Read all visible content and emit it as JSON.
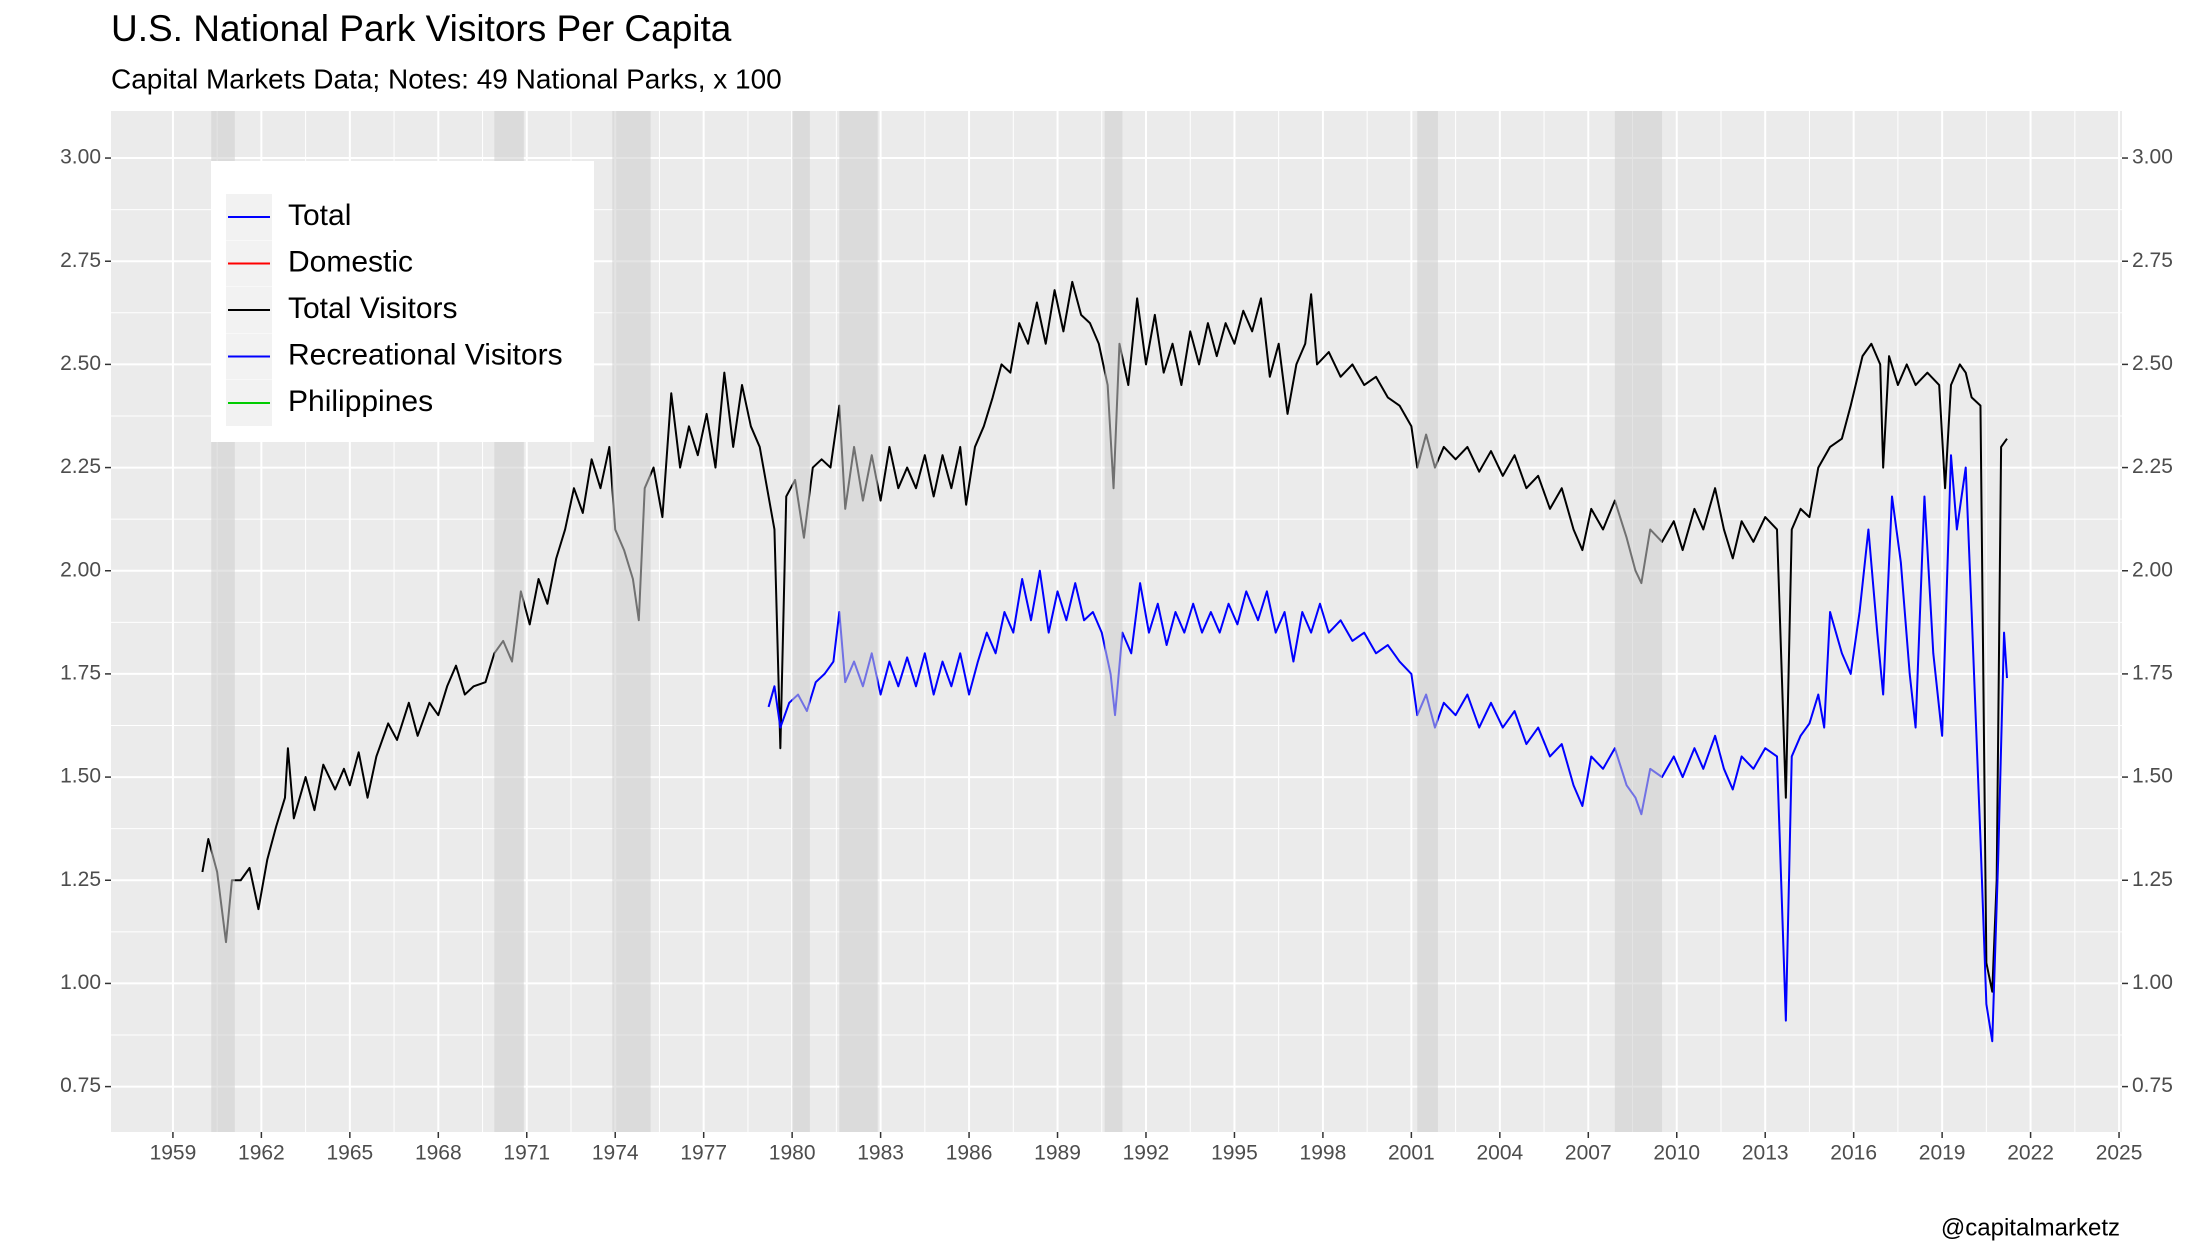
{
  "chart_data": {
    "type": "line",
    "title": "U.S. National Park Visitors Per Capita",
    "subtitle": "Capital Markets Data; Notes: 49 National Parks, x 100",
    "caption": "@capitalmarketz",
    "xlim": [
      1956.9,
      2025.1
    ],
    "xticks": [
      1959,
      1962,
      1965,
      1968,
      1971,
      1974,
      1977,
      1980,
      1983,
      1986,
      1989,
      1992,
      1995,
      1998,
      2001,
      2004,
      2007,
      2010,
      2013,
      2016,
      2019,
      2022,
      2025
    ],
    "ylim": [
      0.64,
      3.114
    ],
    "yticks": [
      {
        "value": 0.75,
        "label": "0.75"
      },
      {
        "value": 1,
        "label": "1.00"
      },
      {
        "value": 1.25,
        "label": "1.25"
      },
      {
        "value": 1.5,
        "label": "1.50"
      },
      {
        "value": 1.75,
        "label": "1.75"
      },
      {
        "value": 2,
        "label": "2.00"
      },
      {
        "value": 2.25,
        "label": "2.25"
      },
      {
        "value": 2.5,
        "label": "2.50"
      },
      {
        "value": 2.75,
        "label": "2.75"
      },
      {
        "value": 3,
        "label": "3.00"
      }
    ],
    "grid": true,
    "legend_position": "top-left",
    "shaded_periods": [
      [
        1960.3,
        1961.1
      ],
      [
        1969.9,
        1970.9
      ],
      [
        1973.9,
        1975.2
      ],
      [
        1980.0,
        1980.6
      ],
      [
        1981.6,
        1982.9
      ],
      [
        1990.6,
        1991.2
      ],
      [
        2001.2,
        2001.9
      ],
      [
        2007.9,
        2009.5
      ]
    ],
    "series": [
      {
        "name": "Total",
        "color": "#0000ff",
        "x": [],
        "values": []
      },
      {
        "name": "Domestic",
        "color": "#ff0000",
        "x": [],
        "values": []
      },
      {
        "name": "Total Visitors",
        "color": "#000000",
        "x": [
          1960.0,
          1960.2,
          1960.5,
          1960.8,
          1961.0,
          1961.3,
          1961.6,
          1961.9,
          1962.2,
          1962.5,
          1962.8,
          1962.9,
          1963.1,
          1963.5,
          1963.8,
          1964.1,
          1964.5,
          1964.8,
          1965.0,
          1965.3,
          1965.6,
          1965.9,
          1966.3,
          1966.6,
          1967.0,
          1967.3,
          1967.7,
          1968.0,
          1968.3,
          1968.6,
          1968.9,
          1969.2,
          1969.6,
          1969.9,
          1970.2,
          1970.5,
          1970.8,
          1971.1,
          1971.4,
          1971.7,
          1972.0,
          1972.3,
          1972.6,
          1972.9,
          1973.2,
          1973.5,
          1973.8,
          1974.0,
          1974.3,
          1974.6,
          1974.8,
          1975.0,
          1975.3,
          1975.6,
          1975.9,
          1976.2,
          1976.5,
          1976.8,
          1977.1,
          1977.4,
          1977.7,
          1978.0,
          1978.3,
          1978.6,
          1978.9,
          1979.2,
          1979.4,
          1979.6,
          1979.8,
          1980.1,
          1980.4,
          1980.7,
          1981.0,
          1981.3,
          1981.6,
          1981.8,
          1982.1,
          1982.4,
          1982.7,
          1983.0,
          1983.3,
          1983.6,
          1983.9,
          1984.2,
          1984.5,
          1984.8,
          1985.1,
          1985.4,
          1985.7,
          1985.9,
          1986.2,
          1986.5,
          1986.8,
          1987.1,
          1987.4,
          1987.7,
          1988.0,
          1988.3,
          1988.6,
          1988.9,
          1989.2,
          1989.5,
          1989.8,
          1990.1,
          1990.4,
          1990.7,
          1990.9,
          1991.1,
          1991.4,
          1991.7,
          1992.0,
          1992.3,
          1992.6,
          1992.9,
          1993.2,
          1993.5,
          1993.8,
          1994.1,
          1994.4,
          1994.7,
          1995.0,
          1995.3,
          1995.6,
          1995.9,
          1996.2,
          1996.5,
          1996.8,
          1997.1,
          1997.4,
          1997.6,
          1997.8,
          1998.2,
          1998.6,
          1999.0,
          1999.4,
          1999.8,
          2000.2,
          2000.6,
          2001.0,
          2001.2,
          2001.5,
          2001.8,
          2002.1,
          2002.5,
          2002.9,
          2003.3,
          2003.7,
          2004.1,
          2004.5,
          2004.9,
          2005.3,
          2005.7,
          2006.1,
          2006.5,
          2006.8,
          2007.1,
          2007.5,
          2007.9,
          2008.3,
          2008.6,
          2008.8,
          2009.1,
          2009.5,
          2009.9,
          2010.2,
          2010.6,
          2010.9,
          2011.3,
          2011.6,
          2011.9,
          2012.2,
          2012.6,
          2013.0,
          2013.4,
          2013.7,
          2013.9,
          2014.2,
          2014.5,
          2014.8,
          2015.2,
          2015.6,
          2015.9,
          2016.3,
          2016.6,
          2016.9,
          2017.0,
          2017.2,
          2017.5,
          2017.8,
          2018.1,
          2018.5,
          2018.9,
          2019.1,
          2019.3,
          2019.6,
          2019.8,
          2020.0,
          2020.3,
          2020.5,
          2020.7,
          2020.85,
          2021.0,
          2021.2
        ],
        "values": [
          1.27,
          1.35,
          1.27,
          1.1,
          1.25,
          1.25,
          1.28,
          1.18,
          1.3,
          1.38,
          1.45,
          1.57,
          1.4,
          1.5,
          1.42,
          1.53,
          1.47,
          1.52,
          1.48,
          1.56,
          1.45,
          1.55,
          1.63,
          1.59,
          1.68,
          1.6,
          1.68,
          1.65,
          1.72,
          1.77,
          1.7,
          1.72,
          1.73,
          1.8,
          1.83,
          1.78,
          1.95,
          1.87,
          1.98,
          1.92,
          2.03,
          2.1,
          2.2,
          2.14,
          2.27,
          2.2,
          2.3,
          2.1,
          2.05,
          1.98,
          1.88,
          2.2,
          2.25,
          2.13,
          2.43,
          2.25,
          2.35,
          2.28,
          2.38,
          2.25,
          2.48,
          2.3,
          2.45,
          2.35,
          2.3,
          2.18,
          2.1,
          1.57,
          2.18,
          2.22,
          2.08,
          2.25,
          2.27,
          2.25,
          2.4,
          2.15,
          2.3,
          2.17,
          2.28,
          2.17,
          2.3,
          2.2,
          2.25,
          2.2,
          2.28,
          2.18,
          2.28,
          2.2,
          2.3,
          2.16,
          2.3,
          2.35,
          2.42,
          2.5,
          2.48,
          2.6,
          2.55,
          2.65,
          2.55,
          2.68,
          2.58,
          2.7,
          2.62,
          2.6,
          2.55,
          2.45,
          2.2,
          2.55,
          2.45,
          2.66,
          2.5,
          2.62,
          2.48,
          2.55,
          2.45,
          2.58,
          2.5,
          2.6,
          2.52,
          2.6,
          2.55,
          2.63,
          2.58,
          2.66,
          2.47,
          2.55,
          2.38,
          2.5,
          2.55,
          2.67,
          2.5,
          2.53,
          2.47,
          2.5,
          2.45,
          2.47,
          2.42,
          2.4,
          2.35,
          2.25,
          2.33,
          2.25,
          2.3,
          2.27,
          2.3,
          2.24,
          2.29,
          2.23,
          2.28,
          2.2,
          2.23,
          2.15,
          2.2,
          2.1,
          2.05,
          2.15,
          2.1,
          2.17,
          2.08,
          2.0,
          1.97,
          2.1,
          2.07,
          2.12,
          2.05,
          2.15,
          2.1,
          2.2,
          2.1,
          2.03,
          2.12,
          2.07,
          2.13,
          2.1,
          1.45,
          2.1,
          2.15,
          2.13,
          2.25,
          2.3,
          2.32,
          2.4,
          2.52,
          2.55,
          2.5,
          2.25,
          2.52,
          2.45,
          2.5,
          2.45,
          2.48,
          2.45,
          2.2,
          2.45,
          2.5,
          2.48,
          2.42,
          2.4,
          1.05,
          0.98,
          1.25,
          2.3,
          2.32
        ]
      },
      {
        "name": "Recreational Visitors",
        "color": "#0000ff",
        "x": [
          1979.2,
          1979.4,
          1979.6,
          1979.9,
          1980.2,
          1980.5,
          1980.8,
          1981.1,
          1981.4,
          1981.6,
          1981.8,
          1982.1,
          1982.4,
          1982.7,
          1983.0,
          1983.3,
          1983.6,
          1983.9,
          1984.2,
          1984.5,
          1984.8,
          1985.1,
          1985.4,
          1985.7,
          1986.0,
          1986.3,
          1986.6,
          1986.9,
          1987.2,
          1987.5,
          1987.8,
          1988.1,
          1988.4,
          1988.7,
          1989.0,
          1989.3,
          1989.6,
          1989.9,
          1990.2,
          1990.5,
          1990.8,
          1990.95,
          1991.2,
          1991.5,
          1991.8,
          1992.1,
          1992.4,
          1992.7,
          1993.0,
          1993.3,
          1993.6,
          1993.9,
          1994.2,
          1994.5,
          1994.8,
          1995.1,
          1995.4,
          1995.8,
          1996.1,
          1996.4,
          1996.7,
          1997.0,
          1997.3,
          1997.6,
          1997.9,
          1998.2,
          1998.6,
          1999.0,
          1999.4,
          1999.8,
          2000.2,
          2000.6,
          2001.0,
          2001.2,
          2001.5,
          2001.8,
          2002.1,
          2002.5,
          2002.9,
          2003.3,
          2003.7,
          2004.1,
          2004.5,
          2004.9,
          2005.3,
          2005.7,
          2006.1,
          2006.5,
          2006.8,
          2007.1,
          2007.5,
          2007.9,
          2008.3,
          2008.6,
          2008.8,
          2009.1,
          2009.5,
          2009.9,
          2010.2,
          2010.6,
          2010.9,
          2011.3,
          2011.6,
          2011.9,
          2012.2,
          2012.6,
          2013.0,
          2013.4,
          2013.7,
          2013.9,
          2014.2,
          2014.5,
          2014.8,
          2015.0,
          2015.2,
          2015.6,
          2015.9,
          2016.2,
          2016.5,
          2016.8,
          2017.0,
          2017.3,
          2017.6,
          2017.9,
          2018.1,
          2018.4,
          2018.7,
          2019.0,
          2019.3,
          2019.5,
          2019.8,
          2020.0,
          2020.3,
          2020.5,
          2020.7,
          2020.9,
          2021.1,
          2021.2
        ],
        "values": [
          1.67,
          1.72,
          1.62,
          1.68,
          1.7,
          1.66,
          1.73,
          1.75,
          1.78,
          1.9,
          1.73,
          1.78,
          1.72,
          1.8,
          1.7,
          1.78,
          1.72,
          1.79,
          1.72,
          1.8,
          1.7,
          1.78,
          1.72,
          1.8,
          1.7,
          1.78,
          1.85,
          1.8,
          1.9,
          1.85,
          1.98,
          1.88,
          2.0,
          1.85,
          1.95,
          1.88,
          1.97,
          1.88,
          1.9,
          1.85,
          1.75,
          1.65,
          1.85,
          1.8,
          1.97,
          1.85,
          1.92,
          1.82,
          1.9,
          1.85,
          1.92,
          1.85,
          1.9,
          1.85,
          1.92,
          1.87,
          1.95,
          1.88,
          1.95,
          1.85,
          1.9,
          1.78,
          1.9,
          1.85,
          1.92,
          1.85,
          1.88,
          1.83,
          1.85,
          1.8,
          1.82,
          1.78,
          1.75,
          1.65,
          1.7,
          1.62,
          1.68,
          1.65,
          1.7,
          1.62,
          1.68,
          1.62,
          1.66,
          1.58,
          1.62,
          1.55,
          1.58,
          1.48,
          1.43,
          1.55,
          1.52,
          1.57,
          1.48,
          1.45,
          1.41,
          1.52,
          1.5,
          1.55,
          1.5,
          1.57,
          1.52,
          1.6,
          1.52,
          1.47,
          1.55,
          1.52,
          1.57,
          1.55,
          0.91,
          1.55,
          1.6,
          1.63,
          1.7,
          1.62,
          1.9,
          1.8,
          1.75,
          1.9,
          2.1,
          1.85,
          1.7,
          2.18,
          2.02,
          1.75,
          1.62,
          2.18,
          1.8,
          1.6,
          2.28,
          2.1,
          2.25,
          1.9,
          1.35,
          0.95,
          0.86,
          1.3,
          1.85,
          1.74
        ]
      },
      {
        "name": "Philippines",
        "color": "#00cc00",
        "x": [],
        "values": []
      }
    ]
  }
}
